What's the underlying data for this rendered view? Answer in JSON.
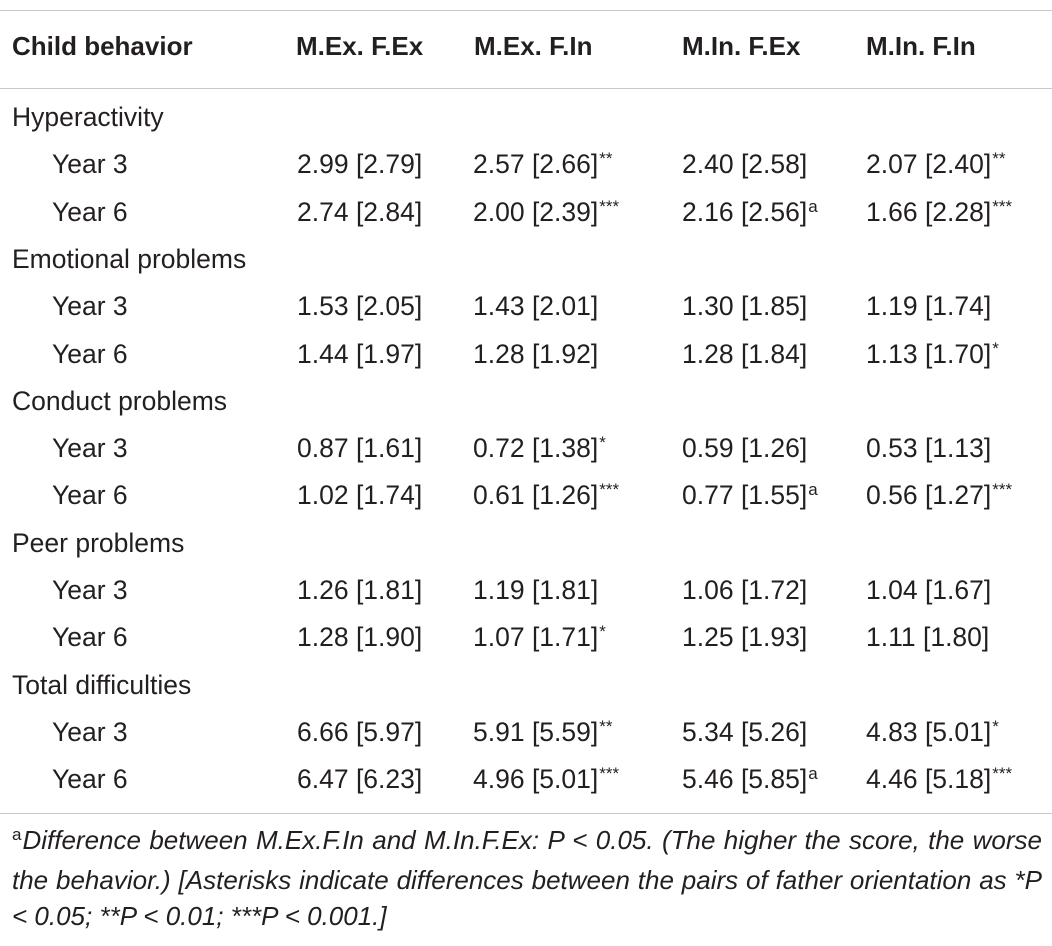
{
  "table": {
    "headers": [
      "Child behavior",
      "M.Ex. F.Ex",
      "M.Ex. F.In",
      "M.In. F.Ex",
      "M.In. F.In"
    ],
    "sections": [
      {
        "label": "Hyperactivity",
        "rows": [
          {
            "label": "Year 3",
            "cells": [
              {
                "value": "2.99 [2.79]",
                "mark": ""
              },
              {
                "value": "2.57 [2.66]",
                "mark": "**"
              },
              {
                "value": "2.40 [2.58]",
                "mark": ""
              },
              {
                "value": "2.07 [2.40]",
                "mark": "**"
              }
            ]
          },
          {
            "label": "Year 6",
            "cells": [
              {
                "value": "2.74 [2.84]",
                "mark": ""
              },
              {
                "value": "2.00 [2.39]",
                "mark": "***"
              },
              {
                "value": "2.16 [2.56]",
                "mark": "a"
              },
              {
                "value": "1.66 [2.28]",
                "mark": "***"
              }
            ]
          }
        ]
      },
      {
        "label": "Emotional problems",
        "rows": [
          {
            "label": "Year 3",
            "cells": [
              {
                "value": "1.53 [2.05]",
                "mark": ""
              },
              {
                "value": "1.43 [2.01]",
                "mark": ""
              },
              {
                "value": "1.30 [1.85]",
                "mark": ""
              },
              {
                "value": "1.19 [1.74]",
                "mark": ""
              }
            ]
          },
          {
            "label": "Year 6",
            "cells": [
              {
                "value": "1.44 [1.97]",
                "mark": ""
              },
              {
                "value": "1.28 [1.92]",
                "mark": ""
              },
              {
                "value": "1.28 [1.84]",
                "mark": ""
              },
              {
                "value": "1.13 [1.70]",
                "mark": "*"
              }
            ]
          }
        ]
      },
      {
        "label": "Conduct problems",
        "rows": [
          {
            "label": "Year 3",
            "cells": [
              {
                "value": "0.87 [1.61]",
                "mark": ""
              },
              {
                "value": "0.72 [1.38]",
                "mark": "*"
              },
              {
                "value": "0.59 [1.26]",
                "mark": ""
              },
              {
                "value": "0.53 [1.13]",
                "mark": ""
              }
            ]
          },
          {
            "label": "Year 6",
            "cells": [
              {
                "value": "1.02 [1.74]",
                "mark": ""
              },
              {
                "value": "0.61 [1.26]",
                "mark": "***"
              },
              {
                "value": "0.77 [1.55]",
                "mark": "a"
              },
              {
                "value": "0.56 [1.27]",
                "mark": "***"
              }
            ]
          }
        ]
      },
      {
        "label": "Peer problems",
        "rows": [
          {
            "label": "Year 3",
            "cells": [
              {
                "value": "1.26 [1.81]",
                "mark": ""
              },
              {
                "value": "1.19 [1.81]",
                "mark": ""
              },
              {
                "value": "1.06 [1.72]",
                "mark": ""
              },
              {
                "value": "1.04 [1.67]",
                "mark": ""
              }
            ]
          },
          {
            "label": "Year 6",
            "cells": [
              {
                "value": "1.28 [1.90]",
                "mark": ""
              },
              {
                "value": "1.07 [1.71]",
                "mark": "*"
              },
              {
                "value": "1.25 [1.93]",
                "mark": ""
              },
              {
                "value": "1.11 [1.80]",
                "mark": ""
              }
            ]
          }
        ]
      },
      {
        "label": "Total difficulties",
        "rows": [
          {
            "label": "Year 3",
            "cells": [
              {
                "value": "6.66 [5.97]",
                "mark": ""
              },
              {
                "value": "5.91 [5.59]",
                "mark": "**"
              },
              {
                "value": "5.34 [5.26]",
                "mark": ""
              },
              {
                "value": "4.83 [5.01]",
                "mark": "*"
              }
            ]
          },
          {
            "label": "Year 6",
            "cells": [
              {
                "value": "6.47 [6.23]",
                "mark": ""
              },
              {
                "value": "4.96 [5.01]",
                "mark": "***"
              },
              {
                "value": "5.46 [5.85]",
                "mark": "a"
              },
              {
                "value": "4.46 [5.18]",
                "mark": "***"
              }
            ]
          }
        ]
      }
    ],
    "footnote": {
      "marker": "a",
      "text": "Difference between M.Ex.F.In and M.In.F.Ex: P < 0.05. (The higher the score, the worse the behavior.) [Asterisks indicate differences between the pairs of father orientation as *P < 0.05; **P < 0.01; ***P < 0.001.]"
    }
  }
}
